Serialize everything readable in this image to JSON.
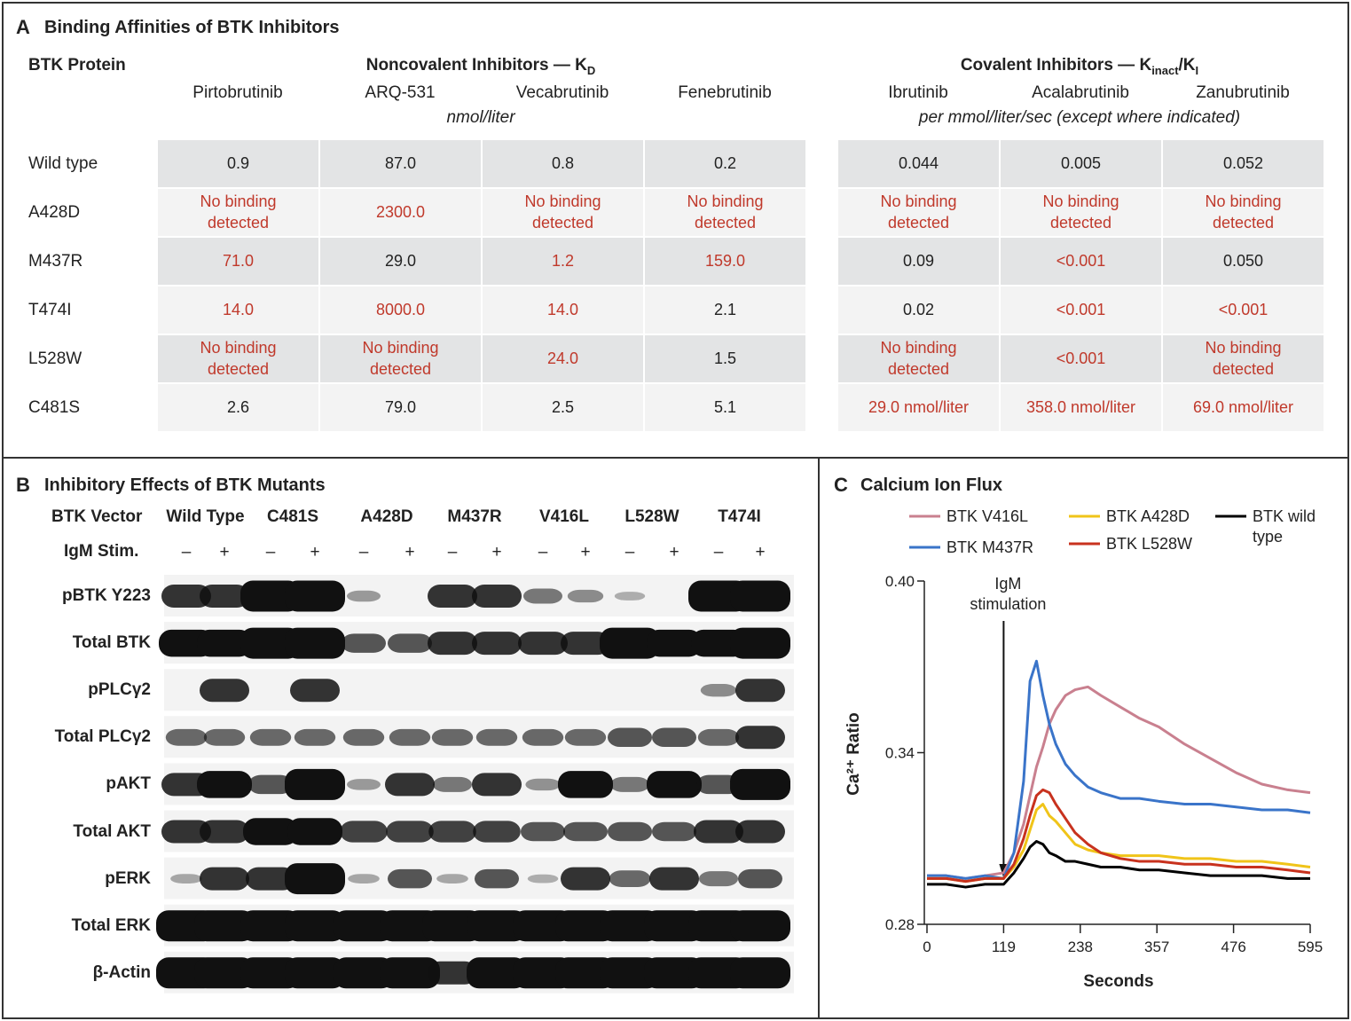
{
  "panel_a": {
    "letter": "A",
    "title": "Binding Affinities of BTK Inhibitors",
    "row_header": "BTK Protein",
    "noncovalent": {
      "header": [
        "Noncovalent Inhibitors — K",
        "D"
      ],
      "units": "nmol/liter",
      "columns": [
        "Pirtobrutinib",
        "ARQ-531",
        "Vecabrutinib",
        "Fenebrutinib"
      ]
    },
    "covalent": {
      "header": [
        "Covalent Inhibitors — K",
        "inact",
        "/K",
        "I"
      ],
      "units": "per mmol/liter/sec (except where indicated)",
      "columns": [
        "Ibrutinib",
        "Acalabrutinib",
        "Zanubrutinib"
      ]
    },
    "highlight_color": "#c0392b",
    "rows": [
      {
        "label": "Wild type",
        "cells": [
          "0.9",
          "87.0",
          "0.8",
          "0.2",
          "0.044",
          "0.005",
          "0.052"
        ],
        "highlighted": [
          false,
          false,
          false,
          false,
          false,
          false,
          false
        ]
      },
      {
        "label": "A428D",
        "cells": [
          "No binding detected",
          "2300.0",
          "No binding detected",
          "No binding detected",
          "No binding detected",
          "No binding detected",
          "No binding detected"
        ],
        "highlighted": [
          true,
          true,
          true,
          true,
          true,
          true,
          true
        ]
      },
      {
        "label": "M437R",
        "cells": [
          "71.0",
          "29.0",
          "1.2",
          "159.0",
          "0.09",
          "<0.001",
          "0.050"
        ],
        "highlighted": [
          true,
          false,
          true,
          true,
          false,
          true,
          false
        ]
      },
      {
        "label": "T474I",
        "cells": [
          "14.0",
          "8000.0",
          "14.0",
          "2.1",
          "0.02",
          "<0.001",
          "<0.001"
        ],
        "highlighted": [
          true,
          true,
          true,
          false,
          false,
          true,
          true
        ]
      },
      {
        "label": "L528W",
        "cells": [
          "No binding detected",
          "No binding detected",
          "24.0",
          "1.5",
          "No binding detected",
          "<0.001",
          "No binding detected"
        ],
        "highlighted": [
          true,
          true,
          true,
          false,
          true,
          true,
          true
        ]
      },
      {
        "label": "C481S",
        "cells": [
          "2.6",
          "79.0",
          "2.5",
          "5.1",
          "29.0 nmol/liter",
          "358.0 nmol/liter",
          "69.0 nmol/liter"
        ],
        "highlighted": [
          false,
          false,
          false,
          false,
          true,
          true,
          true
        ]
      }
    ]
  },
  "panel_b": {
    "letter": "B",
    "title": "Inhibitory Effects of BTK Mutants",
    "vector_label": "BTK Vector",
    "vectors": [
      "Wild Type",
      "C481S",
      "A428D",
      "M437R",
      "V416L",
      "L528W",
      "T474I"
    ],
    "stim_label": "IgM Stim.",
    "stim": [
      "–",
      "+",
      "–",
      "+",
      "–",
      "+",
      "–",
      "+",
      "–",
      "+",
      "–",
      "+",
      "–",
      "+"
    ],
    "rows": [
      "pBTK Y223",
      "Total BTK",
      "pPLCγ2",
      "Total PLCγ2",
      "pAKT",
      "Total AKT",
      "pERK",
      "Total ERK",
      "β-Actin"
    ]
  },
  "chart_data": {
    "type": "line",
    "letter": "C",
    "title": "Calcium Ion Flux",
    "x_label": "Seconds",
    "y_label": "Ca²⁺ Ratio",
    "annotation": {
      "text": "IgM stimulation",
      "x": 119
    },
    "x": [
      0,
      30,
      60,
      90,
      119,
      135,
      150,
      160,
      170,
      180,
      190,
      200,
      215,
      230,
      250,
      270,
      300,
      330,
      360,
      400,
      440,
      480,
      520,
      560,
      595
    ],
    "xlim": [
      0,
      595
    ],
    "xticks": [
      0,
      119,
      238,
      357,
      476,
      595
    ],
    "ylim": [
      0.28,
      0.4
    ],
    "yticks": [
      0.28,
      0.34,
      {
        "value": 0.4,
        "label": "0.40"
      }
    ],
    "series": [
      {
        "name": "BTK V416L",
        "color": "#c9808f",
        "values": [
          0.297,
          0.297,
          0.296,
          0.297,
          0.298,
          0.305,
          0.315,
          0.325,
          0.335,
          0.342,
          0.35,
          0.355,
          0.36,
          0.362,
          0.363,
          0.36,
          0.356,
          0.352,
          0.349,
          0.343,
          0.338,
          0.333,
          0.329,
          0.327,
          0.326
        ]
      },
      {
        "name": "BTK M437R",
        "color": "#3a74c9",
        "values": [
          0.297,
          0.297,
          0.296,
          0.297,
          0.296,
          0.305,
          0.33,
          0.365,
          0.372,
          0.36,
          0.35,
          0.343,
          0.336,
          0.332,
          0.328,
          0.326,
          0.324,
          0.324,
          0.323,
          0.322,
          0.322,
          0.321,
          0.32,
          0.32,
          0.319
        ]
      },
      {
        "name": "BTK A428D",
        "color": "#f0c419",
        "values": [
          0.296,
          0.296,
          0.295,
          0.296,
          0.296,
          0.3,
          0.306,
          0.313,
          0.32,
          0.322,
          0.318,
          0.316,
          0.312,
          0.308,
          0.306,
          0.305,
          0.304,
          0.304,
          0.304,
          0.303,
          0.303,
          0.302,
          0.302,
          0.301,
          0.3
        ]
      },
      {
        "name": "BTK L528W",
        "color": "#c8321e",
        "values": [
          0.296,
          0.296,
          0.295,
          0.296,
          0.296,
          0.301,
          0.31,
          0.318,
          0.325,
          0.327,
          0.326,
          0.322,
          0.317,
          0.312,
          0.308,
          0.305,
          0.303,
          0.302,
          0.302,
          0.301,
          0.301,
          0.3,
          0.3,
          0.299,
          0.298
        ]
      },
      {
        "name": "BTK wild type",
        "color": "#000000",
        "values": [
          0.294,
          0.294,
          0.293,
          0.294,
          0.294,
          0.298,
          0.303,
          0.307,
          0.309,
          0.308,
          0.305,
          0.304,
          0.302,
          0.302,
          0.301,
          0.3,
          0.3,
          0.299,
          0.299,
          0.298,
          0.297,
          0.297,
          0.297,
          0.296,
          0.296
        ]
      }
    ]
  }
}
